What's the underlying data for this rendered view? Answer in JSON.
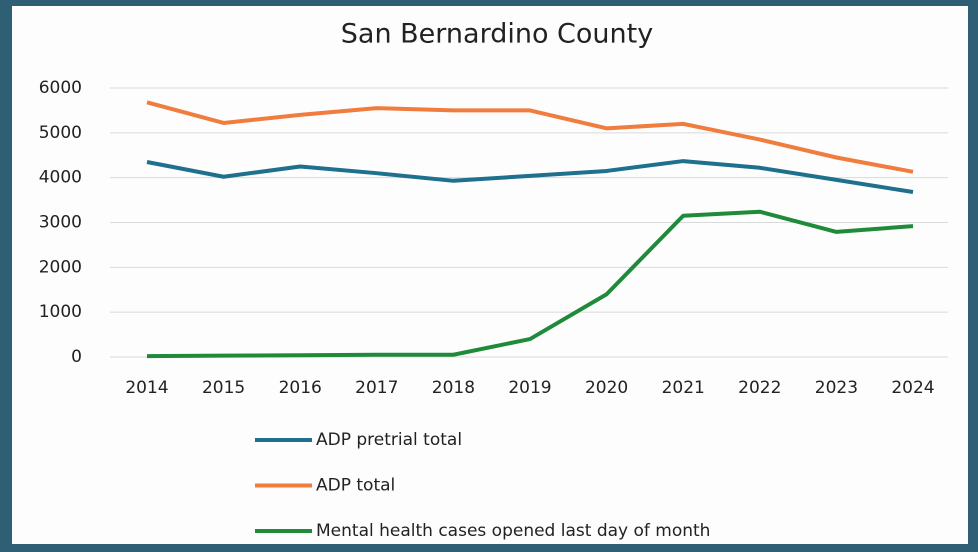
{
  "chart_data": {
    "type": "line",
    "title": "San Bernardino County",
    "categories": [
      "2014",
      "2015",
      "2016",
      "2017",
      "2018",
      "2019",
      "2020",
      "2021",
      "2022",
      "2023",
      "2024"
    ],
    "series": [
      {
        "name": "ADP pretrial total",
        "color": "#1f6f8e",
        "values": [
          4350,
          4020,
          4250,
          4100,
          3930,
          4040,
          4150,
          4370,
          4220,
          3950,
          3680
        ]
      },
      {
        "name": "ADP total",
        "color": "#f07c3e",
        "values": [
          5680,
          5220,
          5400,
          5550,
          5500,
          5500,
          5100,
          5200,
          4850,
          4450,
          4130
        ]
      },
      {
        "name": "Mental health cases opened last day of month",
        "color": "#1f8a3a",
        "values": [
          20,
          30,
          40,
          50,
          50,
          400,
          1400,
          3150,
          3240,
          2790,
          2920
        ]
      }
    ],
    "ylim": [
      0,
      6000
    ],
    "yticks": [
      0,
      1000,
      2000,
      3000,
      4000,
      5000,
      6000
    ],
    "grid": true
  }
}
